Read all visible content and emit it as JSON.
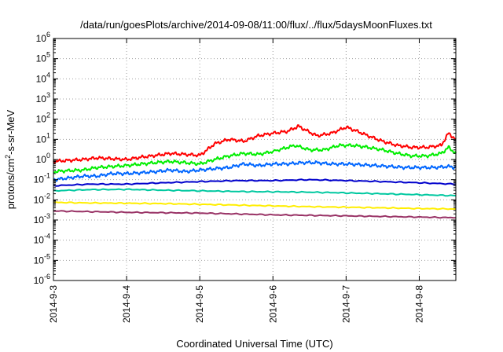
{
  "chart_data": {
    "type": "line",
    "title": "/data/run/goesPlots/archive/2014-09-08/11:00/flux/../flux/5daysMoonFluxes.txt",
    "xlabel": "Coordinated Universal Time (UTC)",
    "ylabel": {
      "prefix": "protons/cm",
      "sup": "2",
      "suffix": "-s-sr-MeV"
    },
    "x_ticks": [
      "2014-9-3",
      "2014-9-4",
      "2014-9-5",
      "2014-9-6",
      "2014-9-7",
      "2014-9-8"
    ],
    "xlim": [
      "2014-9-3",
      "2014-9-8 12:00"
    ],
    "y_scale": "log",
    "y_exponents": [
      -6,
      -5,
      -4,
      -3,
      -2,
      -1,
      0,
      1,
      2,
      3,
      4,
      5,
      6
    ],
    "y_tick_base": "10",
    "ylim": [
      1e-06,
      1000000.0
    ],
    "grid": true,
    "legend": "none",
    "x_unit": "day of September 2014",
    "series": [
      {
        "color": "#ff0000",
        "x": [
          3.0,
          3.2,
          3.4,
          3.6,
          3.8,
          4.0,
          4.2,
          4.4,
          4.6,
          4.8,
          5.0,
          5.1,
          5.2,
          5.4,
          5.6,
          5.8,
          6.0,
          6.2,
          6.35,
          6.4,
          6.6,
          6.8,
          7.0,
          7.1,
          7.3,
          7.5,
          7.7,
          7.9,
          8.1,
          8.3,
          8.4,
          8.5
        ],
        "y": [
          0.8,
          0.9,
          1.0,
          1.2,
          1.1,
          1.0,
          1.3,
          1.6,
          2.0,
          1.8,
          1.6,
          3.0,
          6.0,
          10,
          8.0,
          15,
          20,
          25,
          45,
          35,
          15,
          20,
          40,
          30,
          15,
          8.0,
          5.0,
          4.0,
          4.0,
          5.0,
          20,
          10
        ]
      },
      {
        "color": "#00ee00",
        "x": [
          3.0,
          3.2,
          3.4,
          3.6,
          3.8,
          4.0,
          4.2,
          4.4,
          4.6,
          4.8,
          5.0,
          5.2,
          5.4,
          5.6,
          5.8,
          6.0,
          6.3,
          6.5,
          6.7,
          6.9,
          7.1,
          7.3,
          7.5,
          7.7,
          7.9,
          8.1,
          8.3,
          8.4,
          8.5
        ],
        "y": [
          0.25,
          0.28,
          0.3,
          0.4,
          0.45,
          0.5,
          0.6,
          0.7,
          0.8,
          0.7,
          0.6,
          1.0,
          1.5,
          2.0,
          1.8,
          2.5,
          5.0,
          3.0,
          3.0,
          5.0,
          5.0,
          4.0,
          3.0,
          2.0,
          1.5,
          1.5,
          2.0,
          4.0,
          2.0
        ]
      },
      {
        "color": "#0066ff",
        "x": [
          3.0,
          3.2,
          3.4,
          3.6,
          3.8,
          4.0,
          4.2,
          4.4,
          4.6,
          4.8,
          5.0,
          5.2,
          5.4,
          5.6,
          5.8,
          6.0,
          6.2,
          6.4,
          6.6,
          6.8,
          7.0,
          7.2,
          7.4,
          7.6,
          7.8,
          8.0,
          8.2,
          8.4,
          8.5
        ],
        "y": [
          0.1,
          0.12,
          0.15,
          0.15,
          0.2,
          0.2,
          0.22,
          0.25,
          0.3,
          0.25,
          0.3,
          0.35,
          0.4,
          0.6,
          0.5,
          0.6,
          0.6,
          0.7,
          0.7,
          0.6,
          0.6,
          0.55,
          0.5,
          0.45,
          0.4,
          0.4,
          0.4,
          0.45,
          0.4
        ]
      },
      {
        "color": "#0000cc",
        "x": [
          3.0,
          3.5,
          4.0,
          4.5,
          5.0,
          5.5,
          6.0,
          6.5,
          7.0,
          7.5,
          8.0,
          8.5
        ],
        "y": [
          0.05,
          0.06,
          0.06,
          0.07,
          0.08,
          0.09,
          0.09,
          0.1,
          0.09,
          0.08,
          0.07,
          0.06
        ]
      },
      {
        "color": "#00c8a0",
        "x": [
          3.0,
          3.5,
          4.0,
          4.5,
          5.0,
          5.5,
          6.0,
          6.5,
          7.0,
          7.5,
          8.0,
          8.5
        ],
        "y": [
          0.028,
          0.032,
          0.033,
          0.03,
          0.028,
          0.026,
          0.025,
          0.024,
          0.022,
          0.02,
          0.018,
          0.016
        ]
      },
      {
        "color": "#ffee00",
        "x": [
          3.0,
          3.5,
          4.0,
          4.5,
          5.0,
          5.5,
          6.0,
          6.5,
          7.0,
          7.5,
          8.0,
          8.5
        ],
        "y": [
          0.0075,
          0.007,
          0.0068,
          0.0065,
          0.006,
          0.0055,
          0.005,
          0.0046,
          0.0043,
          0.004,
          0.0037,
          0.0035
        ]
      },
      {
        "color": "#993366",
        "x": [
          3.0,
          3.5,
          4.0,
          4.5,
          5.0,
          5.5,
          6.0,
          6.5,
          7.0,
          7.5,
          8.0,
          8.5
        ],
        "y": [
          0.0028,
          0.0026,
          0.0024,
          0.0023,
          0.0022,
          0.002,
          0.0018,
          0.0017,
          0.0016,
          0.0015,
          0.0014,
          0.0013
        ]
      }
    ]
  }
}
